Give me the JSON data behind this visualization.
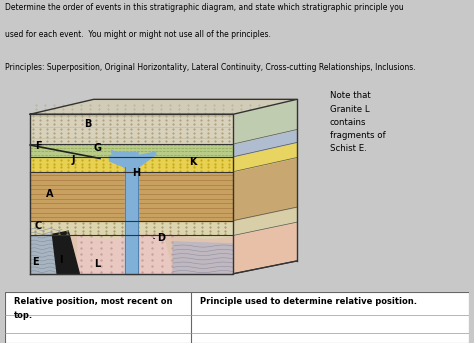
{
  "title_line1": "Determine the order of events in this stratigraphic diagram, and state which stratigraphic principle you",
  "title_line2": "used for each event.  You might or might not use all of the principles.",
  "principles_line": "Principles: Superposition, Original Horizontality, Lateral Continuity, Cross-cutting Relationships, Inclusions.",
  "note_text": "Note that\nGranite L\ncontains\nfragments of\nSchist E.",
  "table_col1_line1": "Relative position, most recent on",
  "table_col1_line2": "top.",
  "table_col2": "Principle used to determine relative position.",
  "bg_color": "#c8c8c8",
  "layer_B_color": "#d8d4c8",
  "layer_G_color": "#c8d4a0",
  "layer_J_color": "#e0d060",
  "layer_A_color": "#c8a870",
  "layer_C_color": "#d8d0b0",
  "layer_bottom_color": "#e8c8b8",
  "layer_schist_color": "#b0b8c0",
  "layer_igneous_color": "#222222",
  "dike_color": "#7aaad0",
  "side_colors": [
    "#b8c8d8",
    "#c8a870",
    "#c8a870",
    "#c8a870",
    "#e8d870",
    "#d8d4c8",
    "#c8d4a0",
    "#d8d4c8"
  ],
  "right_face_colors": [
    "#c8d0b8",
    "#c8a870",
    "#c8a870",
    "#d4c090",
    "#e8d860",
    "#b8c0d0",
    "#c0c8d8",
    "#d8d4c8",
    "#c8d4a0"
  ],
  "outline_color": "#333333",
  "label_fontsize": 7
}
